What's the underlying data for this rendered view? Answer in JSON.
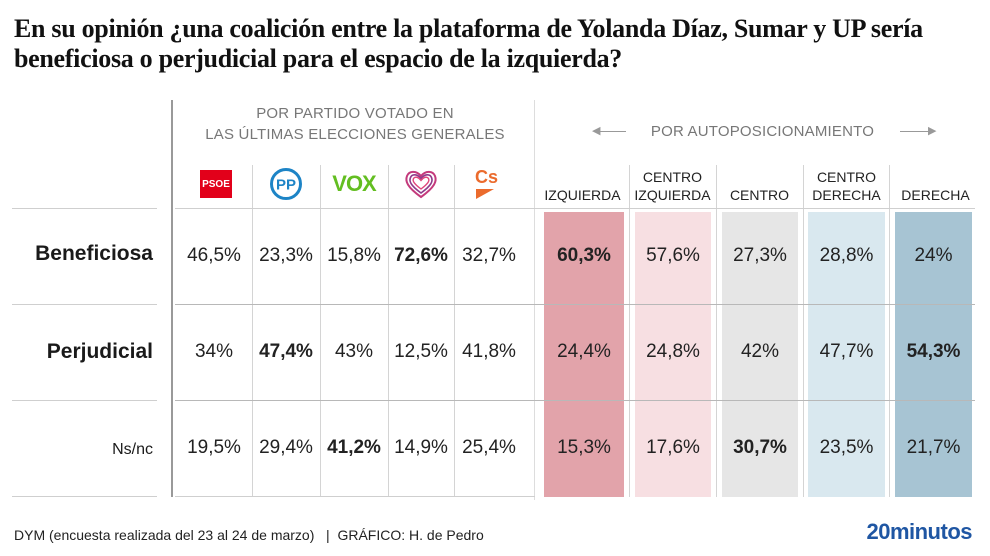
{
  "title": "En su opinión ¿una coalición entre la plataforma de Yolanda Díaz, Sumar y UP sería beneficiosa o perjudicial para el espacio de la izquierda?",
  "groups": {
    "by_party": {
      "line1": "POR PARTIDO VOTADO EN",
      "line2": "LAS ÚLTIMAS ELECCIONES GENERALES"
    },
    "by_position": {
      "label": "POR AUTOPOSICIONAMIENTO",
      "arrow_left": "←",
      "arrow_right": "→"
    }
  },
  "parties": [
    {
      "name": "PSOE",
      "logo": "psoe-logo",
      "color": "#e2001a"
    },
    {
      "name": "PP",
      "logo": "pp-logo",
      "color": "#1d84c6"
    },
    {
      "name": "VOX",
      "logo": "vox-logo",
      "color": "#63be21"
    },
    {
      "name": "Unidas Podemos",
      "logo": "up-heart-logo",
      "color": "#a4307a"
    },
    {
      "name": "Cs",
      "logo": "cs-logo",
      "color": "#eb6b2d"
    }
  ],
  "positions": [
    {
      "line1": "",
      "line2": "IZQUIERDA",
      "color": "#e2a3aa"
    },
    {
      "line1": "CENTRO",
      "line2": "IZQUIERDA",
      "color": "#f7dfe2"
    },
    {
      "line1": "",
      "line2": "CENTRO",
      "color": "#e6e6e6"
    },
    {
      "line1": "CENTRO",
      "line2": "DERECHA",
      "color": "#d9e8ef"
    },
    {
      "line1": "",
      "line2": "DERECHA",
      "color": "#a7c4d3"
    }
  ],
  "rows": [
    {
      "label": "Beneficiosa",
      "party_values": [
        "46,5%",
        "23,3%",
        "15,8%",
        "72,6%",
        "32,7%"
      ],
      "party_bold": [
        false,
        false,
        false,
        true,
        false
      ],
      "position_values": [
        "60,3%",
        "57,6%",
        "27,3%",
        "28,8%",
        "24%"
      ],
      "position_bold": [
        true,
        false,
        false,
        false,
        false
      ]
    },
    {
      "label": "Perjudicial",
      "party_values": [
        "34%",
        "47,4%",
        "43%",
        "12,5%",
        "41,8%"
      ],
      "party_bold": [
        false,
        true,
        false,
        false,
        false
      ],
      "position_values": [
        "24,4%",
        "24,8%",
        "42%",
        "47,7%",
        "54,3%"
      ],
      "position_bold": [
        false,
        false,
        false,
        false,
        true
      ]
    },
    {
      "label": "Ns/nc",
      "party_values": [
        "19,5%",
        "29,4%",
        "41,2%",
        "14,9%",
        "25,4%"
      ],
      "party_bold": [
        false,
        false,
        true,
        false,
        false
      ],
      "position_values": [
        "15,3%",
        "17,6%",
        "30,7%",
        "23,5%",
        "21,7%"
      ],
      "position_bold": [
        false,
        false,
        true,
        false,
        false
      ]
    }
  ],
  "footer": {
    "source": "DYM (encuesta realizada del 23 al 24 de marzo)   |  GRÁFICO: H. de Pedro",
    "brand": "20minutos",
    "brand_color": "#1f56a3"
  },
  "chart_data": {
    "type": "table",
    "title": "En su opinión ¿una coalición entre la plataforma de Yolanda Díaz, Sumar y UP sería beneficiosa o perjudicial para el espacio de la izquierda?",
    "row_labels": [
      "Beneficiosa",
      "Perjudicial",
      "Ns/nc"
    ],
    "column_groups": [
      {
        "name": "POR PARTIDO VOTADO EN LAS ÚLTIMAS ELECCIONES GENERALES",
        "columns": [
          "PSOE",
          "PP",
          "VOX",
          "Unidas Podemos",
          "Cs"
        ]
      },
      {
        "name": "POR AUTOPOSICIONAMIENTO",
        "columns": [
          "Izquierda",
          "Centro izquierda",
          "Centro",
          "Centro derecha",
          "Derecha"
        ]
      }
    ],
    "series": [
      {
        "name": "Beneficiosa",
        "values": [
          46.5,
          23.3,
          15.8,
          72.6,
          32.7,
          60.3,
          57.6,
          27.3,
          28.8,
          24.0
        ]
      },
      {
        "name": "Perjudicial",
        "values": [
          34.0,
          47.4,
          43.0,
          12.5,
          41.8,
          24.4,
          24.8,
          42.0,
          47.7,
          54.3
        ]
      },
      {
        "name": "Ns/nc",
        "values": [
          19.5,
          29.4,
          41.2,
          14.9,
          25.4,
          15.3,
          17.6,
          30.7,
          23.5,
          21.7
        ]
      }
    ],
    "unit": "%"
  }
}
